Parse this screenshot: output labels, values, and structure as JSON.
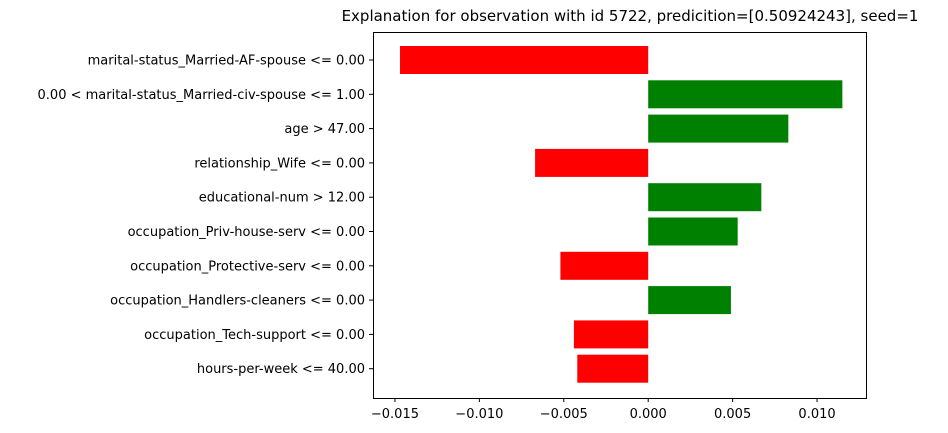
{
  "chart_data": {
    "type": "bar",
    "orientation": "horizontal",
    "title": "Explanation for observation with id 5722, predicition=[0.50924243], seed=1",
    "xlabel": "",
    "ylabel": "",
    "xlim": [
      -0.0163,
      0.0129
    ],
    "xticks": [
      -0.015,
      -0.01,
      -0.005,
      0.0,
      0.005,
      0.01
    ],
    "xtick_labels": [
      "−0.015",
      "−0.010",
      "−0.005",
      "0.000",
      "0.005",
      "0.010"
    ],
    "grid": false,
    "legend": "none",
    "categories": [
      "marital-status_Married-AF-spouse <= 0.00",
      "0.00 < marital-status_Married-civ-spouse <= 1.00",
      "age > 47.00",
      "relationship_Wife <= 0.00",
      "educational-num > 12.00",
      "occupation_Priv-house-serv <= 0.00",
      "occupation_Protective-serv <= 0.00",
      "occupation_Handlers-cleaners <= 0.00",
      "occupation_Tech-support <= 0.00",
      "hours-per-week <= 40.00"
    ],
    "values": [
      -0.0147,
      0.0115,
      0.0083,
      -0.0067,
      0.0067,
      0.0053,
      -0.0052,
      0.0049,
      -0.0044,
      -0.0042
    ],
    "colors": {
      "positive": "#008000",
      "negative": "#ff0000",
      "axis": "#000000"
    }
  }
}
